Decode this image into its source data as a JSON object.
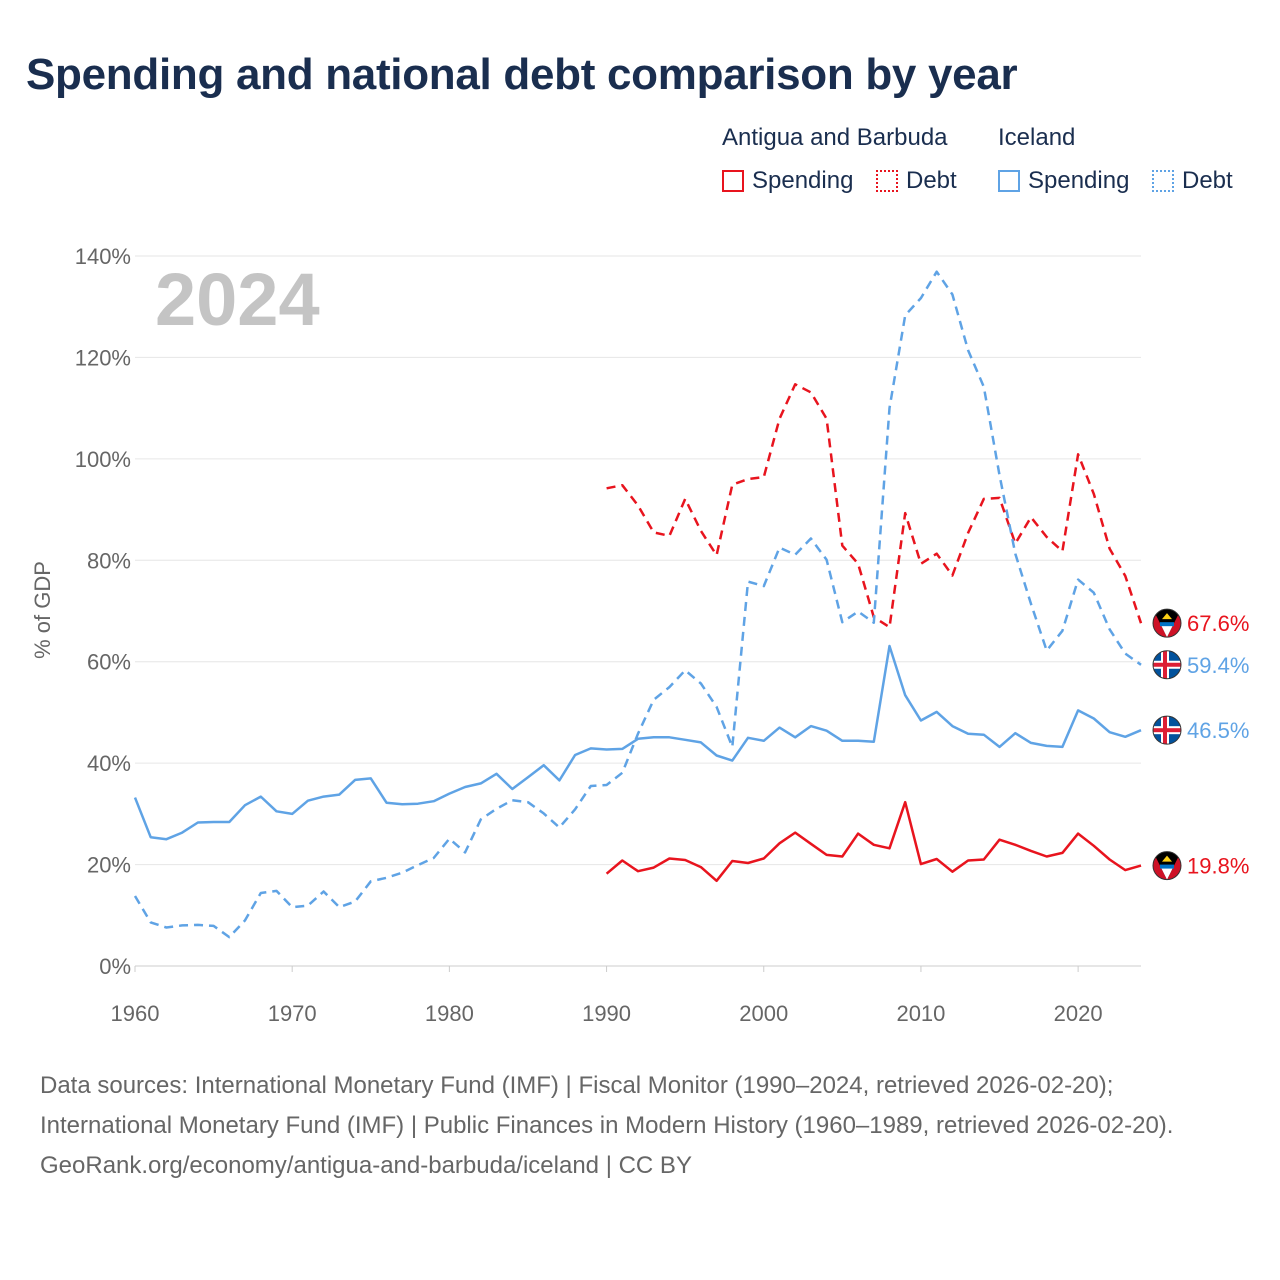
{
  "title": "Spending and national debt comparison by year",
  "legend": {
    "country1": "Antigua and Barbuda",
    "country2": "Iceland",
    "spending": "Spending",
    "debt": "Debt"
  },
  "colors": {
    "antigua": "#e8141e",
    "iceland": "#5fa3e5",
    "grid": "#e6e6e6",
    "tick": "#666666",
    "year": "#c4c4c4"
  },
  "year_label": "2024",
  "footer": {
    "sources": "Data sources: International Monetary Fund (IMF) | Fiscal Monitor (1990–2024, retrieved 2026-02-20); International Monetary Fund (IMF) | Public Finances in Modern History (1960–1989, retrieved 2026-02-20).",
    "credit": "GeoRank.org/economy/antigua-and-barbuda/iceland | CC BY"
  },
  "chart_data": {
    "type": "line",
    "title": "Spending and national debt comparison by year",
    "xlabel": "",
    "ylabel": "% of GDP",
    "xlim": [
      1960,
      2024
    ],
    "ylim": [
      0,
      140
    ],
    "xticks": [
      1960,
      1970,
      1980,
      1990,
      2000,
      2010,
      2020
    ],
    "yticks": [
      0,
      20,
      40,
      60,
      80,
      100,
      120,
      140
    ],
    "grid": true,
    "series": [
      {
        "name": "Antigua and Barbuda Spending",
        "country": "antigua",
        "style": "solid",
        "end_label": "19.8%",
        "x": [
          1990,
          1991,
          1992,
          1993,
          1994,
          1995,
          1996,
          1997,
          1998,
          1999,
          2000,
          2001,
          2002,
          2003,
          2004,
          2005,
          2006,
          2007,
          2008,
          2009,
          2010,
          2011,
          2012,
          2013,
          2014,
          2015,
          2016,
          2017,
          2018,
          2019,
          2020,
          2021,
          2022,
          2023,
          2024
        ],
        "values": [
          18.2,
          20.8,
          18.7,
          19.4,
          21.2,
          20.9,
          19.5,
          16.8,
          20.7,
          20.3,
          21.2,
          24.2,
          26.3,
          24.1,
          21.9,
          21.6,
          26.1,
          23.9,
          23.2,
          32.3,
          20.1,
          21.1,
          18.6,
          20.8,
          21.0,
          24.9,
          23.9,
          22.7,
          21.6,
          22.3,
          26.1,
          23.7,
          21.0,
          18.9,
          19.8
        ]
      },
      {
        "name": "Antigua and Barbuda Debt",
        "country": "antigua",
        "style": "dashed",
        "end_label": "67.6%",
        "x": [
          1990,
          1991,
          1992,
          1993,
          1994,
          1995,
          1996,
          1997,
          1998,
          1999,
          2000,
          2001,
          2002,
          2003,
          2004,
          2005,
          2006,
          2007,
          2008,
          2009,
          2010,
          2011,
          2012,
          2013,
          2014,
          2015,
          2016,
          2017,
          2018,
          2019,
          2020,
          2021,
          2022,
          2023,
          2024
        ],
        "values": [
          94.2,
          94.8,
          90.8,
          85.5,
          84.8,
          92.1,
          85.8,
          81.0,
          94.9,
          96.0,
          96.4,
          107.9,
          114.7,
          113.1,
          107.9,
          82.9,
          79.3,
          68.8,
          66.8,
          89.3,
          79.3,
          81.3,
          77.0,
          85.4,
          92.1,
          92.3,
          83.3,
          88.5,
          84.6,
          81.8,
          100.9,
          93.1,
          82.3,
          76.9,
          67.6
        ]
      },
      {
        "name": "Iceland Spending",
        "country": "iceland",
        "style": "solid",
        "end_label": "46.5%",
        "x": [
          1960,
          1961,
          1962,
          1963,
          1964,
          1965,
          1966,
          1967,
          1968,
          1969,
          1970,
          1971,
          1972,
          1973,
          1974,
          1975,
          1976,
          1977,
          1978,
          1979,
          1980,
          1981,
          1982,
          1983,
          1984,
          1985,
          1986,
          1987,
          1988,
          1989,
          1990,
          1991,
          1992,
          1993,
          1994,
          1995,
          1996,
          1997,
          1998,
          1999,
          2000,
          2001,
          2002,
          2003,
          2004,
          2005,
          2006,
          2007,
          2008,
          2009,
          2010,
          2011,
          2012,
          2013,
          2014,
          2015,
          2016,
          2017,
          2018,
          2019,
          2020,
          2021,
          2022,
          2023,
          2024
        ],
        "values": [
          33.2,
          25.4,
          25.0,
          26.3,
          28.3,
          28.4,
          28.4,
          31.7,
          33.4,
          30.5,
          30.0,
          32.6,
          33.4,
          33.8,
          36.7,
          37.0,
          32.2,
          31.9,
          32.0,
          32.5,
          34.0,
          35.3,
          36.0,
          37.9,
          34.9,
          37.2,
          39.6,
          36.6,
          41.6,
          42.9,
          42.7,
          42.8,
          44.8,
          45.1,
          45.1,
          44.6,
          44.1,
          41.5,
          40.5,
          45.0,
          44.4,
          47.0,
          45.1,
          47.3,
          46.4,
          44.4,
          44.4,
          44.2,
          63.1,
          53.4,
          48.4,
          50.1,
          47.3,
          45.8,
          45.6,
          43.2,
          45.9,
          44.0,
          43.4,
          43.2,
          50.4,
          48.8,
          46.1,
          45.2,
          46.5
        ]
      },
      {
        "name": "Iceland Debt",
        "country": "iceland",
        "style": "dashed",
        "end_label": "59.4%",
        "x": [
          1960,
          1961,
          1962,
          1963,
          1964,
          1965,
          1966,
          1967,
          1968,
          1969,
          1970,
          1971,
          1972,
          1973,
          1974,
          1975,
          1976,
          1977,
          1978,
          1979,
          1980,
          1981,
          1982,
          1983,
          1984,
          1985,
          1986,
          1987,
          1988,
          1989,
          1990,
          1991,
          1992,
          1993,
          1994,
          1995,
          1996,
          1997,
          1998,
          1999,
          2000,
          2001,
          2002,
          2003,
          2004,
          2005,
          2006,
          2007,
          2008,
          2009,
          2010,
          2011,
          2012,
          2013,
          2014,
          2015,
          2016,
          2017,
          2018,
          2019,
          2020,
          2021,
          2022,
          2023,
          2024
        ],
        "values": [
          13.8,
          8.6,
          7.6,
          8.0,
          8.1,
          7.9,
          5.7,
          9.0,
          14.4,
          14.8,
          11.6,
          11.9,
          14.7,
          11.6,
          12.7,
          16.7,
          17.4,
          18.4,
          19.9,
          21.3,
          25.1,
          22.4,
          28.9,
          31.0,
          32.7,
          32.3,
          30.1,
          27.3,
          30.9,
          35.5,
          35.7,
          38.1,
          45.8,
          52.5,
          55.0,
          58.3,
          55.7,
          51.1,
          43.2,
          75.8,
          74.9,
          82.5,
          81.1,
          84.3,
          80.1,
          67.8,
          69.9,
          67.7,
          110.0,
          128.3,
          131.7,
          136.9,
          132.4,
          121.4,
          114.2,
          96.8,
          81.3,
          71.4,
          62.2,
          66.1,
          76.2,
          73.6,
          66.4,
          61.6,
          59.4
        ]
      }
    ]
  }
}
